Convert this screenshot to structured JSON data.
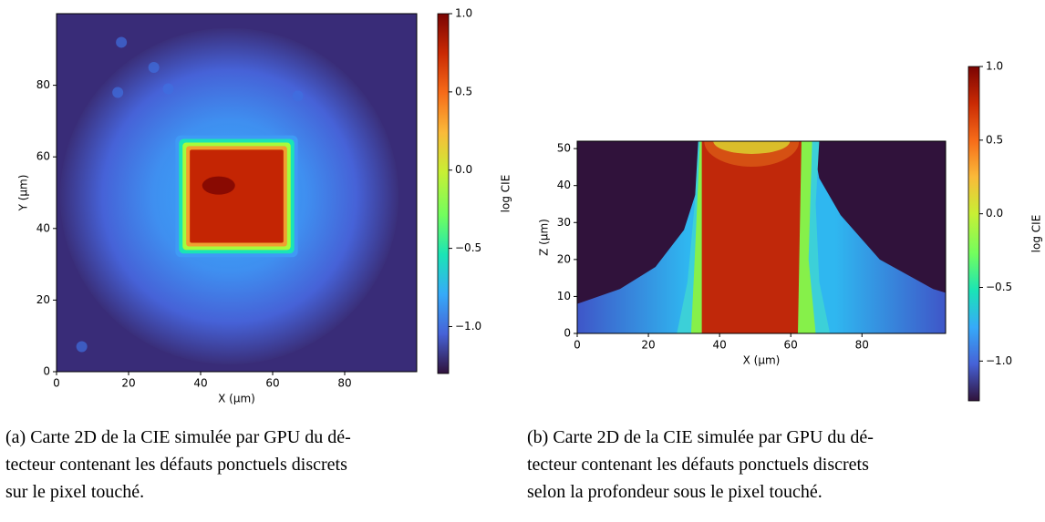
{
  "figures": [
    {
      "chart_data": {
        "type": "heatmap",
        "xlabel": "X (µm)",
        "ylabel": "Y (µm)",
        "xlim": [
          0,
          100
        ],
        "ylim": [
          0,
          100
        ],
        "xticks": [
          0,
          20,
          40,
          60,
          80
        ],
        "yticks": [
          0,
          20,
          40,
          60,
          80
        ],
        "colorbar": {
          "label": "log CIE",
          "lim": [
            -1.3,
            1.0
          ],
          "ticks": [
            {
              "value": 1.0,
              "label": "1.0"
            },
            0.5,
            {
              "value": 0,
              "label": "0.0"
            },
            {
              "value": -0.5,
              "label": "−0.5"
            },
            {
              "value": -1.0,
              "label": "−1.0"
            }
          ]
        }
      },
      "caption": [
        "(a) Carte 2D de la CIE simulée par GPU du dé-",
        "tecteur contenant les défauts ponctuels discrets",
        "sur le pixel touché."
      ]
    },
    {
      "chart_data": {
        "type": "heatmap",
        "xlabel": "X (µm)",
        "ylabel": "Z (µm)",
        "xlim": [
          0,
          103.5
        ],
        "ylim": [
          0,
          52
        ],
        "xticks": [
          0,
          20,
          40,
          60,
          80
        ],
        "yticks": [
          0,
          10,
          20,
          30,
          40,
          50
        ],
        "colorbar": {
          "label": "log CIE",
          "lim": [
            -1.27,
            1.0
          ],
          "ticks": [
            {
              "value": 1.0,
              "label": "1.0"
            },
            0.5,
            {
              "value": 0,
              "label": "0.0"
            },
            {
              "value": -0.5,
              "label": "−0.5"
            },
            {
              "value": -1.0,
              "label": "−1.0"
            }
          ]
        }
      },
      "caption": [
        "(b) Carte 2D de la CIE simulée par GPU du dé-",
        "tecteur contenant les défauts ponctuels discrets",
        "selon la profondeur sous le pixel touché."
      ]
    }
  ]
}
